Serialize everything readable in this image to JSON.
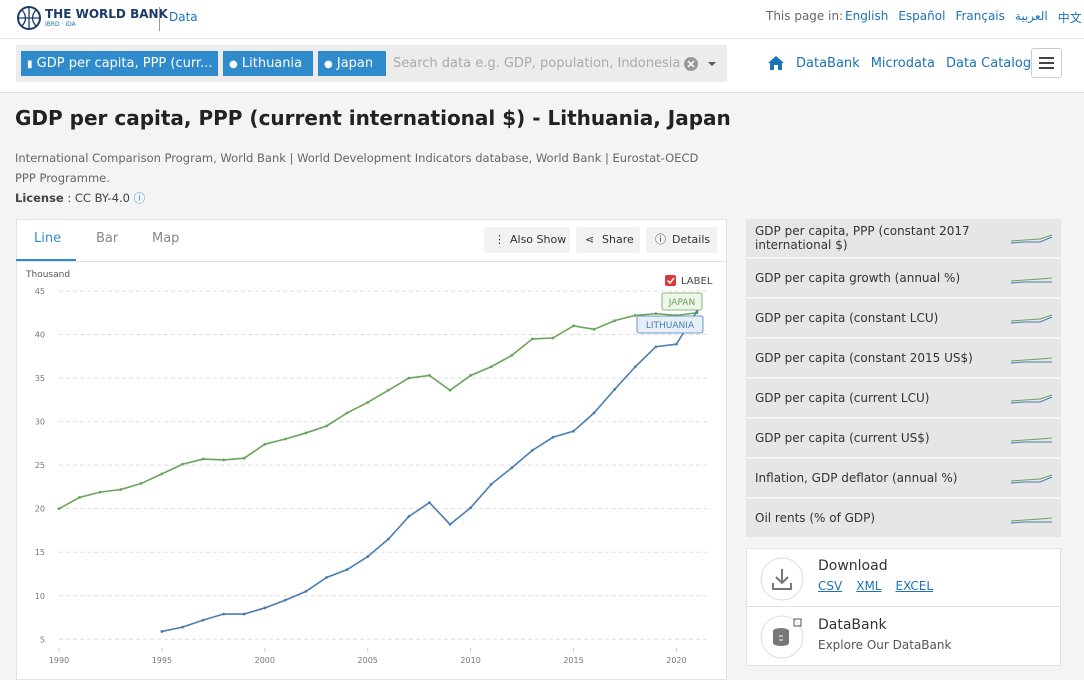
{
  "header": {
    "brand": "THE WORLD BANK",
    "brand_sub": "IBRD · IDA",
    "section": "Data",
    "languages_label": "This page in:",
    "languages": [
      "English",
      "Español",
      "Français",
      "العربية",
      "中文"
    ]
  },
  "search": {
    "tags": [
      "GDP per capita, PPP (curr...",
      "Lithuania",
      "Japan"
    ],
    "placeholder": "Search data e.g. GDP, population, Indonesia"
  },
  "nav": [
    "DataBank",
    "Microdata",
    "Data Catalog"
  ],
  "page": {
    "title": "GDP per capita, PPP (current international $) - Lithuania, Japan",
    "source": "International Comparison Program, World Bank | World Development Indicators database, World Bank | Eurostat-OECD PPP Programme.",
    "license_label": "License",
    "license": ": CC BY-4.0"
  },
  "tabs": [
    "Line",
    "Bar",
    "Map"
  ],
  "actions": [
    "Also Show",
    "Share",
    "Details"
  ],
  "chart_data": {
    "type": "line",
    "y_label": "Thousand",
    "legend_toggle": "LABEL",
    "grid": true,
    "x": [
      1990,
      1991,
      1992,
      1993,
      1994,
      1995,
      1996,
      1997,
      1998,
      1999,
      2000,
      2001,
      2002,
      2003,
      2004,
      2005,
      2006,
      2007,
      2008,
      2009,
      2010,
      2011,
      2012,
      2013,
      2014,
      2015,
      2016,
      2017,
      2018,
      2019,
      2020,
      2021
    ],
    "xlim": [
      1990,
      2021
    ],
    "xticks": [
      1990,
      1995,
      2000,
      2005,
      2010,
      2015,
      2020
    ],
    "ylim": [
      4,
      45
    ],
    "yticks": [
      5,
      10,
      15,
      20,
      25,
      30,
      35,
      40,
      45
    ],
    "series": [
      {
        "name": "JAPAN",
        "color": "#6aa45a",
        "values": [
          20.0,
          21.3,
          21.9,
          22.2,
          22.9,
          24.0,
          25.1,
          25.7,
          25.6,
          25.8,
          27.4,
          28.0,
          28.7,
          29.5,
          31.0,
          32.2,
          33.6,
          35.0,
          35.3,
          33.6,
          35.3,
          36.3,
          37.6,
          39.5,
          39.6,
          41.0,
          40.6,
          41.6,
          42.2,
          42.4,
          42.2,
          42.5
        ]
      },
      {
        "name": "LITHUANIA",
        "color": "#4a7db0",
        "values": [
          null,
          null,
          null,
          null,
          null,
          5.9,
          6.4,
          7.2,
          7.9,
          7.9,
          8.6,
          9.5,
          10.5,
          12.1,
          13.0,
          14.5,
          16.5,
          19.1,
          20.7,
          18.2,
          20.1,
          22.8,
          24.7,
          26.7,
          28.2,
          28.9,
          31.0,
          33.7,
          36.3,
          38.6,
          38.9,
          42.7
        ]
      }
    ]
  },
  "related": [
    "GDP per capita, PPP (constant 2017 international $)",
    "GDP per capita growth (annual %)",
    "GDP per capita (constant LCU)",
    "GDP per capita (constant 2015 US$)",
    "GDP per capita (current LCU)",
    "GDP per capita (current US$)",
    "Inflation, GDP deflator (annual %)",
    "Oil rents (% of GDP)"
  ],
  "download": {
    "title": "Download",
    "formats": [
      "CSV",
      "XML",
      "EXCEL"
    ]
  },
  "databank": {
    "title": "DataBank",
    "subtitle": "Explore Our DataBank"
  }
}
